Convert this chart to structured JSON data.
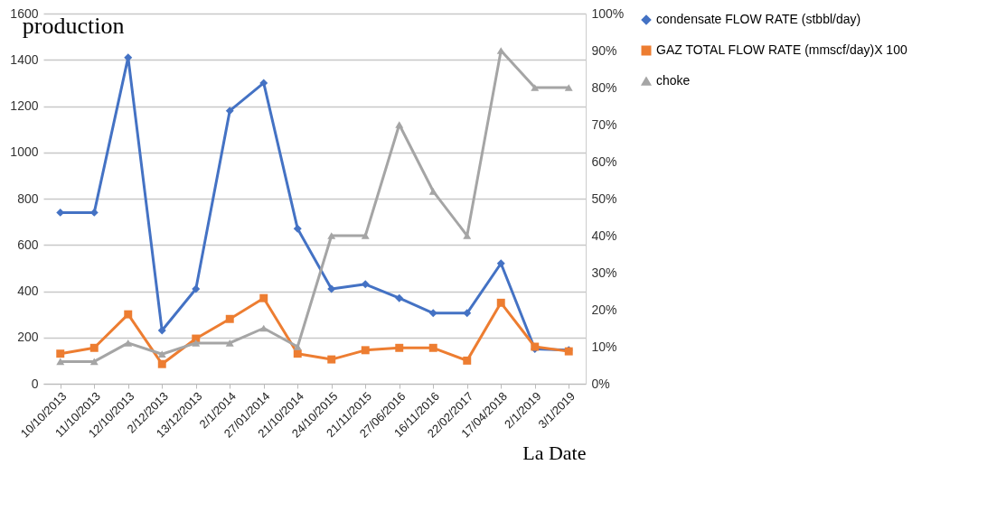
{
  "chart_data": {
    "type": "line",
    "title": "production",
    "xlabel": "La Date",
    "categories": [
      "10/10/2013",
      "11/10/2013",
      "12/10/2013",
      "2/12/2013",
      "13/12/2013",
      "2/1/2014",
      "27/01/2014",
      "21/10/2014",
      "24/10/2015",
      "21/11/2015",
      "27/06/2016",
      "16/11/2016",
      "22/02/2017",
      "17/04/2018",
      "2/1/2019",
      "3/1/2019"
    ],
    "series": [
      {
        "name": "condensate FLOW RATE (stbbl/day)",
        "color": "#4472c4",
        "marker": "diamond",
        "values": [
          740,
          740,
          1410,
          230,
          410,
          1180,
          1300,
          670,
          410,
          430,
          370,
          305,
          305,
          520,
          150,
          145
        ]
      },
      {
        "name": "GAZ TOTAL FLOW RATE (mmscf/day)X 100",
        "color": "#ed7d31",
        "marker": "square",
        "values": [
          130,
          155,
          300,
          85,
          195,
          280,
          370,
          130,
          105,
          145,
          155,
          155,
          100,
          350,
          160,
          140
        ]
      },
      {
        "name": "choke",
        "color": "#a5a5a5",
        "marker": "triangle",
        "axis": "y2",
        "values": [
          6,
          6,
          11,
          8,
          11,
          11,
          15,
          10,
          40,
          40,
          70,
          52,
          40,
          90,
          80,
          80
        ]
      }
    ],
    "ylim": [
      0,
      1600
    ],
    "yticks": [
      0,
      200,
      400,
      600,
      800,
      1000,
      1200,
      1400,
      1600
    ],
    "y2lim": [
      0,
      100
    ],
    "y2ticks": [
      {
        "value": 0,
        "label": "0%"
      },
      {
        "value": 10,
        "label": "10%"
      },
      {
        "value": 20,
        "label": "20%"
      },
      {
        "value": 30,
        "label": "30%"
      },
      {
        "value": 40,
        "label": "40%"
      },
      {
        "value": 50,
        "label": "50%"
      },
      {
        "value": 60,
        "label": "60%"
      },
      {
        "value": 70,
        "label": "70%"
      },
      {
        "value": 80,
        "label": "80%"
      },
      {
        "value": 90,
        "label": "90%"
      },
      {
        "value": 100,
        "label": "100%"
      }
    ],
    "grid": "y",
    "legend": "right",
    "line_style": "solid"
  }
}
